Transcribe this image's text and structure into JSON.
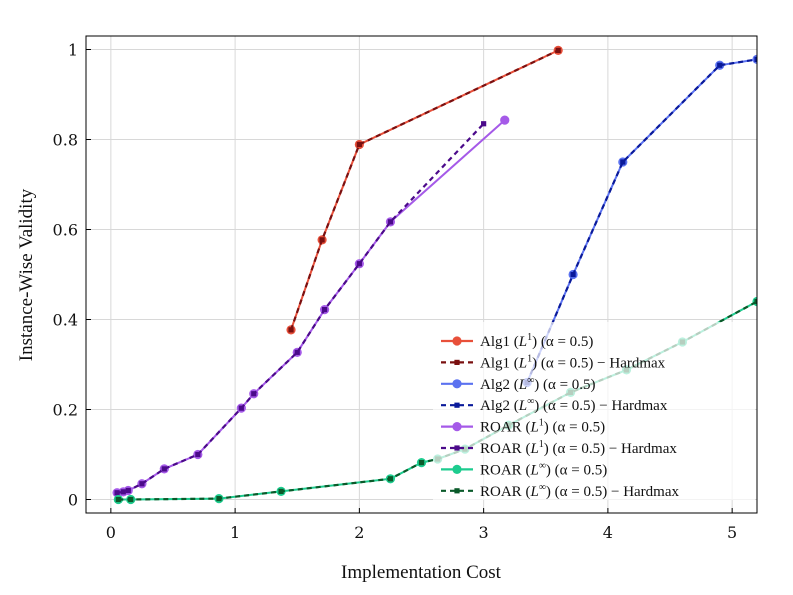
{
  "chart_data": {
    "type": "line",
    "title": "",
    "xlabel": "Implementation Cost",
    "ylabel": "Instance-Wise Validity",
    "xlim": [
      -0.2,
      5.2
    ],
    "ylim": [
      -0.03,
      1.03
    ],
    "xticks": [
      0,
      1,
      2,
      3,
      4,
      5
    ],
    "xtick_labels": [
      "0",
      "1",
      "2",
      "3",
      "4",
      "5"
    ],
    "yticks": [
      0,
      0.2,
      0.4,
      0.6,
      0.8,
      1
    ],
    "ytick_labels": [
      "0",
      "0.2",
      "0.4",
      "0.6",
      "0.8",
      "1"
    ],
    "grid": true,
    "legend_position": "bottom-right",
    "series": [
      {
        "name": "Alg1 (L¹) (α = 0.5)",
        "color": "#e8503a",
        "style": "solid",
        "marker": "circle",
        "x": [
          1.45,
          1.7,
          2.0,
          3.6
        ],
        "y": [
          0.377,
          0.577,
          0.789,
          0.998
        ]
      },
      {
        "name": "Alg1 (L¹) (α = 0.5) – Hardmax",
        "color": "#7a1010",
        "style": "dashed",
        "marker": "square",
        "x": [
          1.45,
          1.7,
          2.0,
          3.6
        ],
        "y": [
          0.377,
          0.577,
          0.789,
          0.998
        ]
      },
      {
        "name": "Alg2 (L∞) (α = 0.5)",
        "color": "#5b72f0",
        "style": "solid",
        "marker": "circle",
        "x": [
          3.35,
          3.72,
          4.12,
          4.9,
          5.2
        ],
        "y": [
          0.26,
          0.5,
          0.75,
          0.965,
          0.978
        ]
      },
      {
        "name": "Alg2 (L∞) (α = 0.5) – Hardmax",
        "color": "#0a1a9a",
        "style": "dashed",
        "marker": "square",
        "x": [
          3.35,
          3.72,
          4.12,
          4.9,
          5.2
        ],
        "y": [
          0.26,
          0.5,
          0.75,
          0.965,
          0.978
        ]
      },
      {
        "name": "ROAR (L¹) (α = 0.5)",
        "color": "#a55ae8",
        "style": "solid",
        "marker": "circle",
        "x": [
          0.05,
          0.1,
          0.14,
          0.25,
          0.43,
          0.7,
          1.05,
          1.15,
          1.5,
          1.72,
          2.0,
          2.25,
          3.17
        ],
        "y": [
          0.015,
          0.017,
          0.02,
          0.035,
          0.068,
          0.1,
          0.203,
          0.235,
          0.327,
          0.422,
          0.524,
          0.617,
          0.843
        ]
      },
      {
        "name": "ROAR (L¹) (α = 0.5) – Hardmax",
        "color": "#4b0a8a",
        "style": "dashed",
        "marker": "square",
        "x": [
          0.05,
          0.1,
          0.14,
          0.25,
          0.43,
          0.7,
          1.05,
          1.15,
          1.5,
          1.72,
          2.0,
          2.25,
          3.0
        ],
        "y": [
          0.015,
          0.017,
          0.02,
          0.035,
          0.068,
          0.1,
          0.203,
          0.235,
          0.327,
          0.422,
          0.524,
          0.617,
          0.835
        ]
      },
      {
        "name": "ROAR (L∞) (α = 0.5)",
        "color": "#1dcc8f",
        "style": "solid",
        "marker": "circle",
        "x": [
          0.06,
          0.16,
          0.87,
          1.37,
          2.25,
          2.5,
          2.63,
          2.85,
          3.2,
          3.7,
          4.15,
          4.6,
          5.2
        ],
        "y": [
          0.0,
          0.0,
          0.002,
          0.018,
          0.046,
          0.082,
          0.09,
          0.112,
          0.165,
          0.238,
          0.288,
          0.35,
          0.44
        ]
      },
      {
        "name": "ROAR (L∞) (α = 0.5) – Hardmax",
        "color": "#0a5a2a",
        "style": "dashed",
        "marker": "square",
        "x": [
          0.06,
          0.16,
          0.87,
          1.37,
          2.25,
          2.5,
          2.63,
          2.85,
          3.2,
          3.7,
          4.15,
          4.6,
          5.2
        ],
        "y": [
          0.0,
          0.0,
          0.002,
          0.018,
          0.046,
          0.082,
          0.09,
          0.112,
          0.165,
          0.238,
          0.288,
          0.35,
          0.44
        ]
      }
    ],
    "legend": [
      {
        "method": "Alg1",
        "norm": "1",
        "suffix": " (α = 0.5)"
      },
      {
        "method": "Alg1",
        "norm": "1",
        "suffix": " (α = 0.5) − Hardmax"
      },
      {
        "method": "Alg2",
        "norm": "∞",
        "suffix": " (α = 0.5)"
      },
      {
        "method": "Alg2",
        "norm": "∞",
        "suffix": " (α = 0.5) − Hardmax"
      },
      {
        "method": "ROAR",
        "norm": "1",
        "suffix": " (α = 0.5)"
      },
      {
        "method": "ROAR",
        "norm": "1",
        "suffix": " (α = 0.5) − Hardmax"
      },
      {
        "method": "ROAR",
        "norm": "∞",
        "suffix": " (α = 0.5)"
      },
      {
        "method": "ROAR",
        "norm": "∞",
        "suffix": " (α = 0.5) − Hardmax"
      }
    ]
  }
}
